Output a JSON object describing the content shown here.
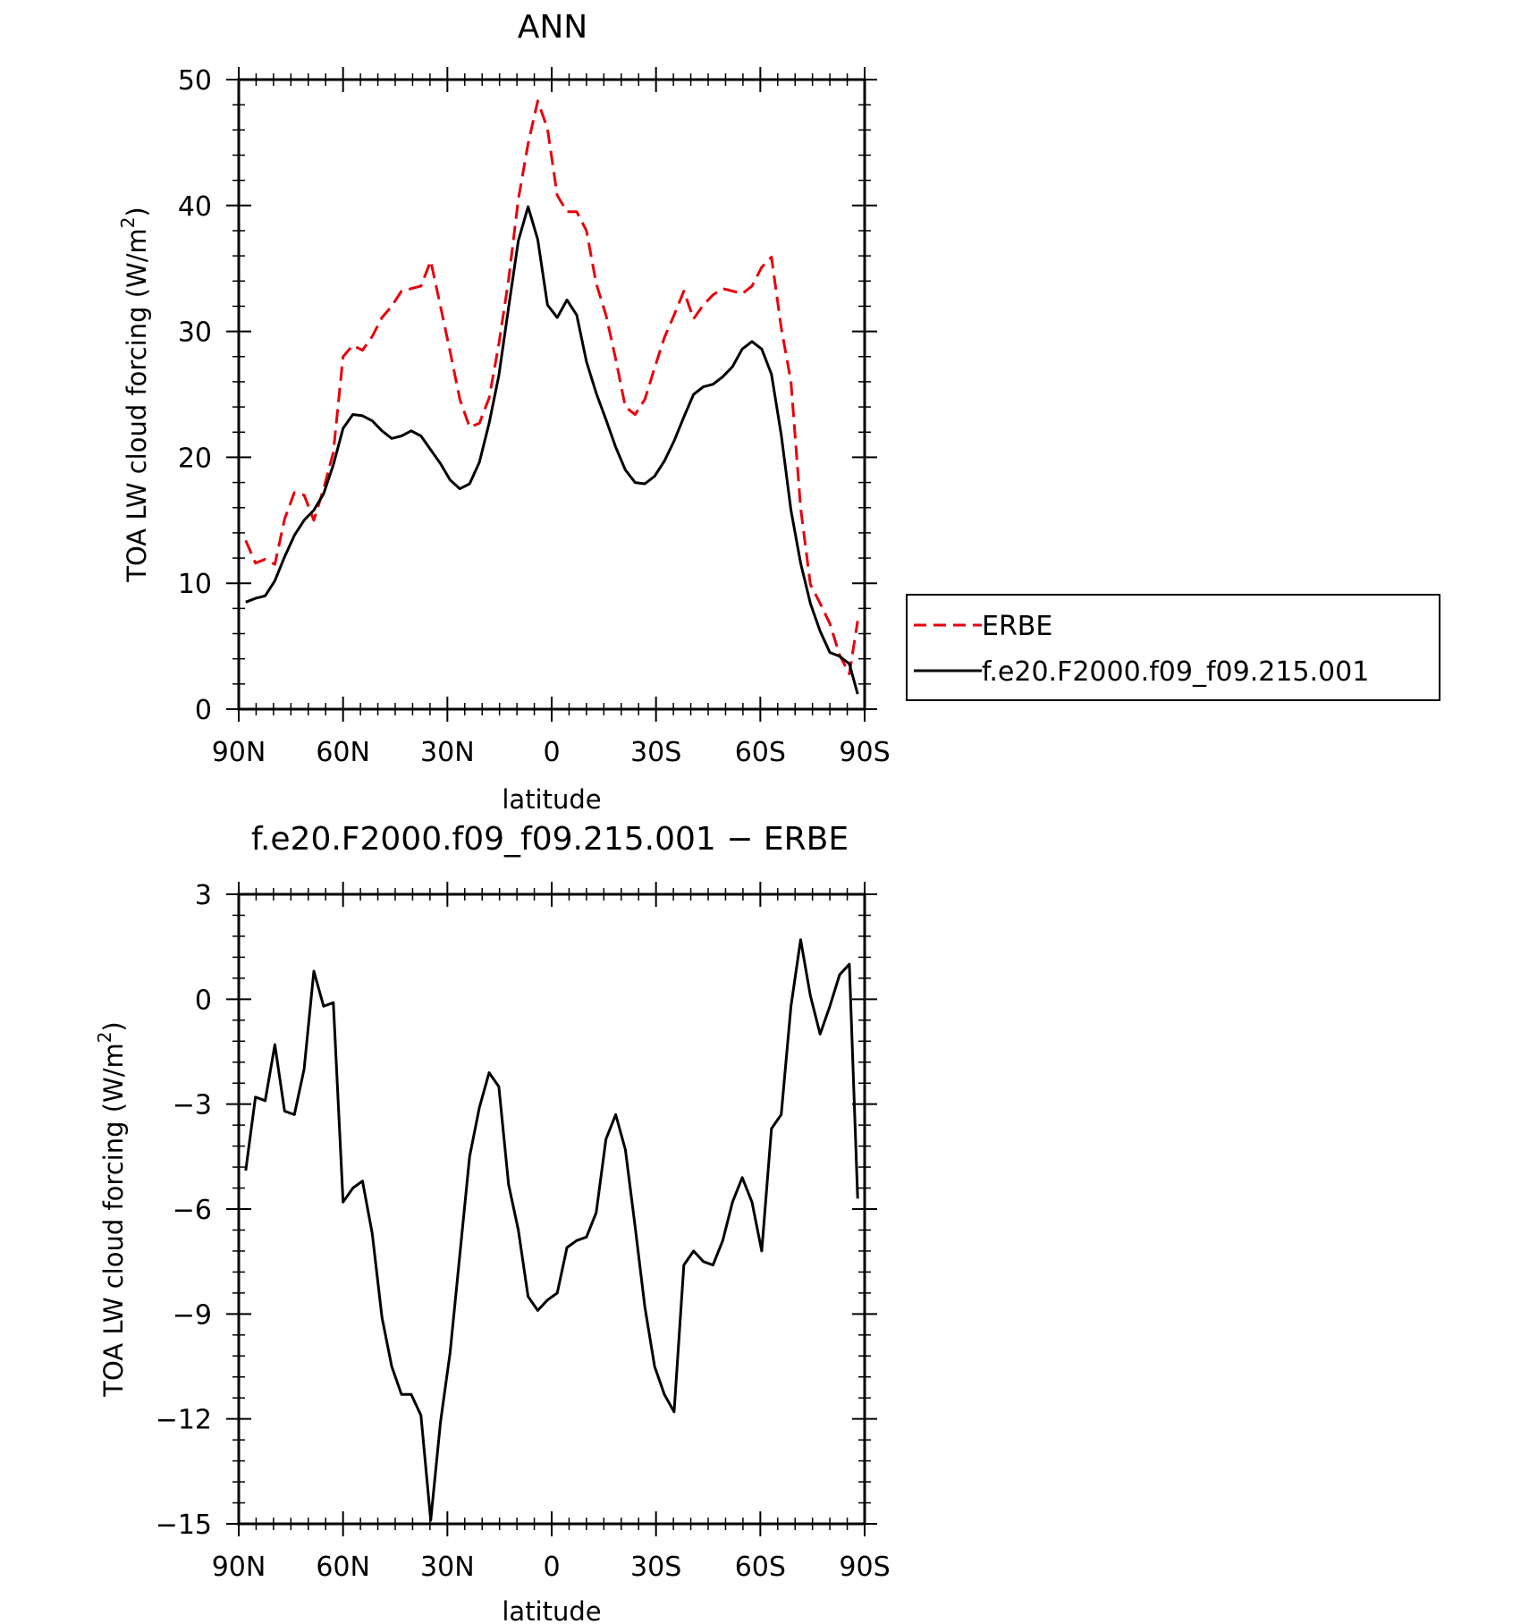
{
  "chart_data": [
    {
      "type": "line",
      "title": "ANN",
      "xlabel": "latitude",
      "ylabel": "TOA LW cloud forcing (W/m²)",
      "ylabel_main": "TOA LW cloud forcing (W/m",
      "ylabel_sup": "2",
      "ylabel_end": ")",
      "xlim": [
        90,
        -90
      ],
      "ylim": [
        0,
        50
      ],
      "xtick_values": [
        90,
        60,
        30,
        0,
        -30,
        -60,
        -90
      ],
      "xtick_labels": [
        "90N",
        "60N",
        "30N",
        "0",
        "30S",
        "60S",
        "90S"
      ],
      "ytick_values": [
        0,
        10,
        20,
        30,
        40,
        50
      ],
      "ytick_labels": [
        "0",
        "10",
        "20",
        "30",
        "40",
        "50"
      ],
      "legend": {
        "placement": "right"
      },
      "x": [
        88.0,
        85.2,
        82.4,
        79.6,
        76.8,
        74.0,
        71.2,
        68.4,
        65.6,
        62.8,
        60.0,
        57.2,
        54.4,
        51.6,
        48.8,
        46.0,
        43.2,
        40.4,
        37.6,
        34.8,
        32.0,
        29.2,
        26.4,
        23.6,
        20.8,
        18.0,
        15.2,
        12.4,
        9.6,
        6.8,
        4.0,
        1.2,
        -1.6,
        -4.4,
        -7.2,
        -10.0,
        -12.8,
        -15.6,
        -18.4,
        -21.2,
        -24.0,
        -26.8,
        -29.6,
        -32.4,
        -35.2,
        -38.0,
        -40.8,
        -43.6,
        -46.4,
        -49.2,
        -52.0,
        -54.8,
        -57.6,
        -60.4,
        -63.2,
        -66.0,
        -68.8,
        -71.6,
        -74.4,
        -77.2,
        -80.0,
        -82.8,
        -85.6,
        -88.0
      ],
      "series": [
        {
          "name": "ERBE",
          "color": "#e8000b",
          "dash": "dashed",
          "values": [
            13.4,
            11.6,
            11.9,
            11.5,
            15.1,
            17.2,
            17.0,
            15.0,
            17.5,
            20.4,
            28.0,
            28.9,
            28.5,
            29.6,
            31.1,
            32.0,
            33.2,
            33.4,
            33.6,
            35.6,
            32.0,
            28.4,
            24.6,
            22.4,
            22.7,
            24.7,
            29.0,
            34.1,
            40.5,
            44.9,
            48.3,
            46.1,
            40.8,
            39.5,
            39.5,
            38.0,
            33.8,
            31.3,
            27.8,
            24.0,
            23.4,
            24.6,
            27.1,
            29.5,
            31.3,
            33.2,
            31.0,
            32.1,
            32.9,
            33.4,
            33.2,
            33.0,
            33.6,
            35.1,
            35.9,
            30.3,
            26.0,
            16.0,
            9.9,
            8.4,
            6.8,
            4.3,
            2.8,
            7.0
          ]
        },
        {
          "name": "f.e20.F2000.f09_f09.215.001",
          "color": "#000000",
          "dash": "solid",
          "values": [
            8.5,
            8.8,
            9.0,
            10.2,
            12.1,
            13.8,
            15.0,
            15.8,
            17.1,
            19.4,
            22.3,
            23.4,
            23.3,
            22.9,
            22.1,
            21.5,
            21.7,
            22.1,
            21.7,
            20.6,
            19.5,
            18.2,
            17.5,
            17.9,
            19.6,
            22.7,
            26.5,
            31.9,
            37.2,
            39.9,
            37.3,
            32.1,
            31.1,
            32.5,
            31.3,
            27.6,
            25.1,
            23.0,
            20.8,
            19.0,
            18.0,
            17.9,
            18.5,
            19.7,
            21.3,
            23.2,
            25.0,
            25.6,
            25.8,
            26.4,
            27.2,
            28.6,
            29.2,
            28.6,
            26.6,
            21.8,
            15.8,
            11.6,
            8.4,
            6.2,
            4.5,
            4.2,
            3.6,
            1.2
          ]
        }
      ]
    },
    {
      "type": "line",
      "title": "f.e20.F2000.f09_f09.215.001 − ERBE",
      "xlabel": "latitude",
      "ylabel": "TOA LW cloud forcing (W/m²)",
      "ylabel_main": "TOA LW cloud forcing (W/m",
      "ylabel_sup": "2",
      "ylabel_end": ")",
      "xlim": [
        90,
        -90
      ],
      "ylim": [
        -15,
        3
      ],
      "xtick_values": [
        90,
        60,
        30,
        0,
        -30,
        -60,
        -90
      ],
      "xtick_labels": [
        "90N",
        "60N",
        "30N",
        "0",
        "30S",
        "60S",
        "90S"
      ],
      "ytick_values": [
        3,
        0,
        -3,
        -6,
        -9,
        -12,
        -15
      ],
      "ytick_labels": [
        "3",
        "0",
        "−3",
        "−6",
        "−9",
        "−12",
        "−15"
      ],
      "x": [
        88.0,
        85.2,
        82.4,
        79.6,
        76.8,
        74.0,
        71.2,
        68.4,
        65.6,
        62.8,
        60.0,
        57.2,
        54.4,
        51.6,
        48.8,
        46.0,
        43.2,
        40.4,
        37.6,
        34.8,
        32.0,
        29.2,
        26.4,
        23.6,
        20.8,
        18.0,
        15.2,
        12.4,
        9.6,
        6.8,
        4.0,
        1.2,
        -1.6,
        -4.4,
        -7.2,
        -10.0,
        -12.8,
        -15.6,
        -18.4,
        -21.2,
        -24.0,
        -26.8,
        -29.6,
        -32.4,
        -35.2,
        -38.0,
        -40.8,
        -43.6,
        -46.4,
        -49.2,
        -52.0,
        -54.8,
        -57.6,
        -60.4,
        -63.2,
        -66.0,
        -68.8,
        -71.6,
        -74.4,
        -77.2,
        -80.0,
        -82.8,
        -85.6,
        -88.0
      ],
      "series": [
        {
          "color": "#000000",
          "dash": "solid",
          "values": [
            -4.9,
            -2.8,
            -2.9,
            -1.3,
            -3.2,
            -3.3,
            -2.0,
            0.8,
            -0.2,
            -0.1,
            -5.8,
            -5.4,
            -5.2,
            -6.7,
            -9.1,
            -10.5,
            -11.3,
            -11.3,
            -11.9,
            -14.9,
            -12.1,
            -10.1,
            -7.3,
            -4.5,
            -3.1,
            -2.1,
            -2.5,
            -5.3,
            -6.6,
            -8.5,
            -8.9,
            -8.6,
            -8.4,
            -7.1,
            -6.9,
            -6.8,
            -6.1,
            -4.0,
            -3.3,
            -4.3,
            -6.5,
            -8.8,
            -10.5,
            -11.3,
            -11.8,
            -7.6,
            -7.2,
            -7.5,
            -7.6,
            -6.9,
            -5.8,
            -5.1,
            -5.8,
            -7.2,
            -3.7,
            -3.3,
            -0.2,
            1.7,
            0.1,
            -1.0,
            -0.2,
            0.7,
            1.0,
            -5.7
          ]
        }
      ]
    }
  ]
}
